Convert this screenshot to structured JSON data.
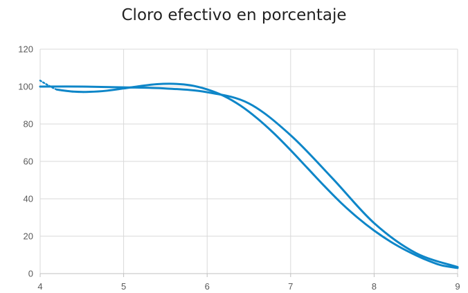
{
  "chart_data": {
    "type": "line",
    "title": "Cloro efectivo en porcentaje",
    "xlabel": "",
    "ylabel": "",
    "xlim": [
      4,
      9
    ],
    "ylim": [
      0,
      120
    ],
    "x_ticks": [
      "4",
      "5",
      "6",
      "7",
      "8",
      "9"
    ],
    "y_ticks": [
      "0",
      "20",
      "40",
      "60",
      "80",
      "100",
      "120"
    ],
    "grid": true,
    "legend": "none",
    "series": [
      {
        "style": "smooth",
        "color": "#0e86c8",
        "x": [
          4.0,
          4.5,
          5.0,
          5.5,
          6.0,
          6.5,
          7.0,
          7.5,
          8.0,
          8.5,
          9.0
        ],
        "y": [
          100,
          100,
          99.6,
          99.0,
          97.0,
          91.0,
          74.0,
          51.0,
          27.0,
          11.0,
          3.5
        ]
      },
      {
        "style": "trend",
        "color": "#0e86c8",
        "x": [
          4.2,
          4.4,
          4.6,
          4.8,
          5.0,
          5.2,
          5.4,
          5.6,
          5.8,
          6.0,
          6.2,
          6.4,
          6.6,
          6.8,
          7.0,
          7.2,
          7.4,
          7.6,
          7.8,
          8.0,
          8.2,
          8.4,
          8.6,
          8.8,
          9.0
        ],
        "y": [
          98.4,
          97.3,
          97.2,
          97.8,
          99.0,
          100.3,
          101.3,
          101.5,
          100.7,
          98.5,
          95.0,
          89.8,
          83.0,
          75.0,
          66.0,
          56.5,
          47.0,
          38.0,
          30.0,
          23.0,
          17.0,
          12.0,
          7.8,
          4.5,
          3.0
        ]
      }
    ],
    "trend_extension": {
      "x": [
        4.0,
        4.1,
        4.2,
        4.3,
        4.4,
        4.5,
        4.6
      ],
      "y": [
        103.2,
        100.6,
        98.4,
        97.8,
        97.3,
        97.1,
        97.2
      ]
    }
  }
}
